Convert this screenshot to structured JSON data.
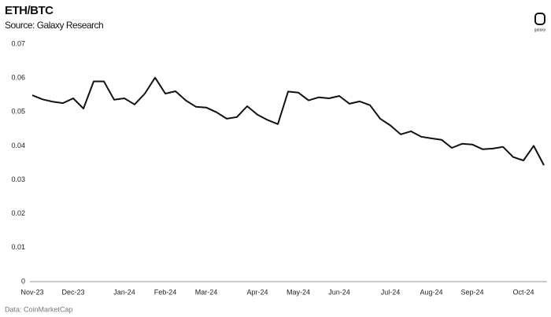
{
  "chart_data": {
    "type": "line",
    "title": "ETH/BTC",
    "subtitle": "Source: Galaxy Research",
    "source": "Data: CoinMarketCap",
    "logo": "galaxy",
    "categories": [
      "Nov-23",
      null,
      null,
      null,
      "Dec-23",
      null,
      null,
      null,
      null,
      "Jan-24",
      null,
      null,
      null,
      "Feb-24",
      null,
      null,
      null,
      "Mar-24",
      null,
      null,
      null,
      null,
      "Apr-24",
      null,
      null,
      null,
      "May-24",
      null,
      null,
      null,
      "Jun-24",
      null,
      null,
      null,
      null,
      "Jul-24",
      null,
      null,
      null,
      "Aug-24",
      null,
      null,
      null,
      "Sep-24",
      null,
      null,
      null,
      null,
      "Oct-24",
      null,
      null
    ],
    "series": [
      {
        "name": "ETH/BTC",
        "color": "#111111",
        "values": [
          0.0549,
          0.0537,
          0.053,
          0.0526,
          0.054,
          0.051,
          0.059,
          0.059,
          0.0536,
          0.054,
          0.0522,
          0.0554,
          0.0601,
          0.0554,
          0.0561,
          0.0534,
          0.0515,
          0.0513,
          0.0499,
          0.048,
          0.0485,
          0.0517,
          0.0492,
          0.0476,
          0.0464,
          0.056,
          0.0557,
          0.0534,
          0.0543,
          0.054,
          0.0547,
          0.0524,
          0.0531,
          0.052,
          0.048,
          0.046,
          0.0434,
          0.0443,
          0.0427,
          0.0422,
          0.0418,
          0.0394,
          0.0406,
          0.0404,
          0.039,
          0.0392,
          0.0397,
          0.0367,
          0.0357,
          0.04,
          0.0343
        ]
      }
    ],
    "ylim": [
      0,
      0.07
    ],
    "yticks": [
      0,
      0.01,
      0.02,
      0.03,
      0.04,
      0.05,
      0.06,
      0.07
    ],
    "grid": false
  }
}
